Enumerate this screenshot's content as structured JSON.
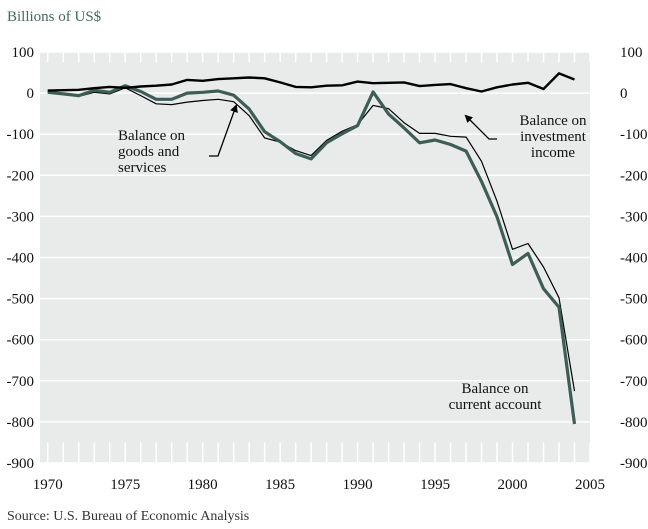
{
  "unit_label": "Billions of US$",
  "source": "Source: U.S. Bureau of Economic Analysis",
  "chart_data": {
    "type": "line",
    "title": "",
    "xlabel": "",
    "ylabel": "Billions of US$",
    "xlim": [
      1969.5,
      2005
    ],
    "ylim": [
      -900,
      100
    ],
    "xticks": [
      "1970",
      "1975",
      "1980",
      "1985",
      "1990",
      "1995",
      "2000",
      "2005"
    ],
    "yticks": [
      "100",
      "0",
      "-100",
      "-200",
      "-300",
      "-400",
      "-500",
      "-600",
      "-700",
      "-800",
      "-900"
    ],
    "grid": true,
    "colors": {
      "background": "#e9eaea",
      "grid": "#ffffff",
      "current_account": "#3d5e56",
      "other": "#000000"
    },
    "series": [
      {
        "key": "investment",
        "x": [
          1970,
          1971,
          1972,
          1973,
          1974,
          1975,
          1976,
          1977,
          1978,
          1979,
          1980,
          1981,
          1982,
          1983,
          1984,
          1985,
          1986,
          1987,
          1988,
          1989,
          1990,
          1991,
          1992,
          1993,
          1994,
          1995,
          1996,
          1997,
          1998,
          1999,
          2000,
          2001,
          2002,
          2003,
          2004
        ],
        "y": [
          6,
          7,
          8,
          12,
          15,
          13,
          16,
          18,
          21,
          32,
          30,
          34,
          36,
          38,
          36,
          26,
          15,
          14,
          18,
          19,
          28,
          24,
          25,
          26,
          17,
          20,
          22,
          12,
          4,
          14,
          21,
          25,
          10,
          48,
          33
        ]
      },
      {
        "key": "goods_services",
        "x": [
          1970,
          1971,
          1972,
          1973,
          1974,
          1975,
          1976,
          1977,
          1978,
          1979,
          1980,
          1981,
          1982,
          1983,
          1984,
          1985,
          1986,
          1987,
          1988,
          1989,
          1990,
          1991,
          1992,
          1993,
          1994,
          1995,
          1996,
          1997,
          1998,
          1999,
          2000,
          2001,
          2002,
          2003,
          2004
        ],
        "y": [
          3,
          -1,
          -8,
          2,
          -2,
          13,
          -6,
          -26,
          -28,
          -22,
          -18,
          -15,
          -21,
          -55,
          -109,
          -119,
          -140,
          -152,
          -115,
          -93,
          -77,
          -30,
          -38,
          -72,
          -98,
          -98,
          -105,
          -107,
          -166,
          -263,
          -380,
          -366,
          -423,
          -498,
          -725
        ]
      },
      {
        "key": "current_account",
        "x": [
          1970,
          1971,
          1972,
          1973,
          1974,
          1975,
          1976,
          1977,
          1978,
          1979,
          1980,
          1981,
          1982,
          1983,
          1984,
          1985,
          1986,
          1987,
          1988,
          1989,
          1990,
          1991,
          1992,
          1993,
          1994,
          1995,
          1996,
          1997,
          1998,
          1999,
          2000,
          2001,
          2002,
          2003,
          2004
        ],
        "y": [
          2,
          -2,
          -6,
          7,
          2,
          18,
          4,
          -15,
          -15,
          0,
          2,
          5,
          -5,
          -39,
          -94,
          -118,
          -147,
          -160,
          -121,
          -99,
          -79,
          3,
          -51,
          -85,
          -121,
          -114,
          -125,
          -141,
          -215,
          -301,
          -417,
          -390,
          -476,
          -521,
          -805
        ]
      }
    ],
    "annotations": [
      {
        "key": "goods_services",
        "lines": [
          "Balance on",
          "goods and",
          "services"
        ]
      },
      {
        "key": "investment",
        "lines": [
          "Balance on",
          "investment",
          "income"
        ]
      },
      {
        "key": "current_account",
        "lines": [
          "Balance on",
          "current account"
        ]
      }
    ]
  }
}
